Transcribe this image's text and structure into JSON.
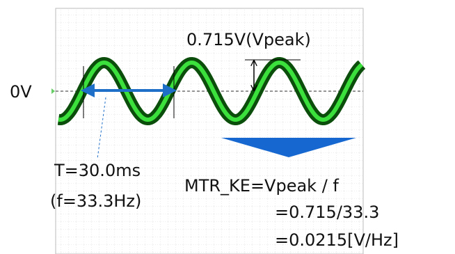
{
  "zero_label": "0V",
  "peak_label": "0.715V(Vpeak)",
  "period_label": "T=30.0ms",
  "frequency_label": "(f=33.3Hz)",
  "formula": {
    "line1": "MTR_KE=Vpeak / f",
    "line2": "=0.715/33.3",
    "line3": "=0.0215[V/Hz]"
  }
}
